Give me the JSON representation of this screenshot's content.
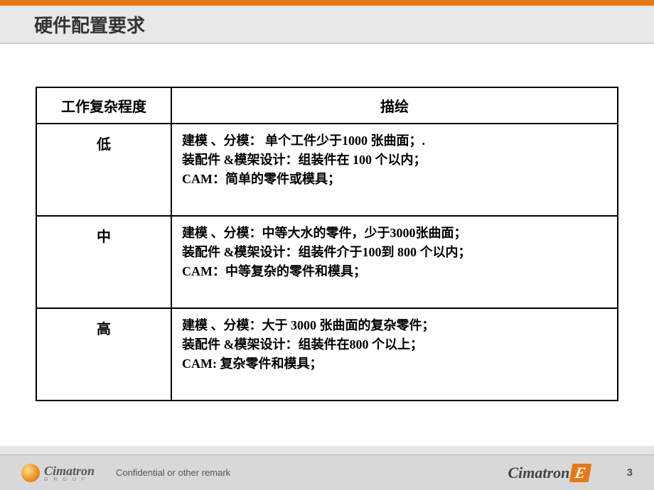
{
  "header": {
    "title": "硬件配置要求"
  },
  "table": {
    "columns": {
      "level": "工作复杂程度",
      "desc": "描绘"
    },
    "rows": [
      {
        "level": "低",
        "line1": "建模 、分模： 单个工件少于1000 张曲面；.",
        "line2": "装配件 &模架设计：组装件在 100 个以内；",
        "line3": "CAM：简单的零件或模具；"
      },
      {
        "level": "中",
        "line1": "建模 、分模：中等大水的零件，少于3000张曲面；",
        "line2": "装配件 &模架设计：组装件介于100到 800 个以内；",
        "line3": "CAM：中等复杂的零件和模具；"
      },
      {
        "level": "高",
        "line1": "建模 、分模：大于 3000 张曲面的复杂零件；",
        "line2": "装配件 &模架设计：组装件在800 个以上；",
        "line3": "CAM: 复杂零件和模具；"
      }
    ]
  },
  "footer": {
    "logo_left_text": "Cimatron",
    "logo_left_sub": "G R O U P",
    "confidential": "Confidential or other remark",
    "logo_right_text": "Cimatron",
    "logo_right_badge": "E",
    "page_number": "3"
  },
  "colors": {
    "accent": "#e67817",
    "title_bg": "#e8e8e8",
    "footer_bg": "#d8d8d8",
    "border": "#000000",
    "text": "#000000"
  }
}
